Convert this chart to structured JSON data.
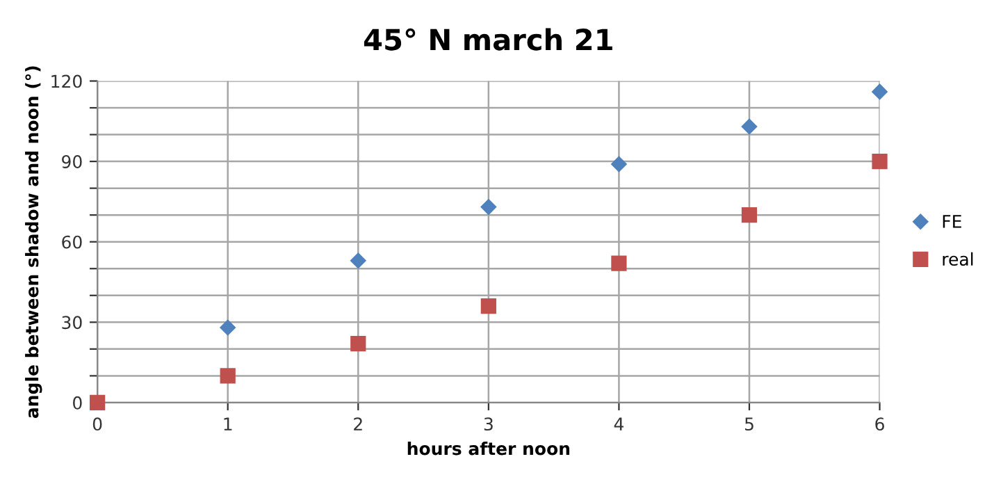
{
  "chart_data": {
    "type": "scatter",
    "title": "45° N march 21",
    "xlabel": "hours after noon",
    "ylabel": "angle between shadow and noon (°)",
    "series": [
      {
        "name": "FE",
        "color": "#4f81bd",
        "marker": "diamond",
        "x": [
          1,
          2,
          3,
          4,
          5,
          6
        ],
        "values": [
          28,
          53,
          73,
          89,
          103,
          116
        ]
      },
      {
        "name": "real",
        "color": "#c0504d",
        "marker": "square",
        "x": [
          0,
          1,
          2,
          3,
          4,
          5,
          6
        ],
        "values": [
          0,
          10,
          22,
          36,
          52,
          70,
          90
        ]
      }
    ],
    "xlim": [
      0,
      6
    ],
    "xticks": [
      0,
      1,
      2,
      3,
      4,
      5,
      6
    ],
    "ylim": [
      0,
      120
    ],
    "yticks": [
      0,
      {
        "value": 10,
        "label": null
      },
      {
        "value": 20,
        "label": null
      },
      30,
      {
        "value": 40,
        "label": null
      },
      {
        "value": 50,
        "label": null
      },
      60,
      {
        "value": 70,
        "label": null
      },
      {
        "value": 80,
        "label": null
      },
      90,
      {
        "value": 100,
        "label": null
      },
      {
        "value": 110,
        "label": null
      },
      120
    ],
    "grid": true,
    "legend": "right"
  }
}
